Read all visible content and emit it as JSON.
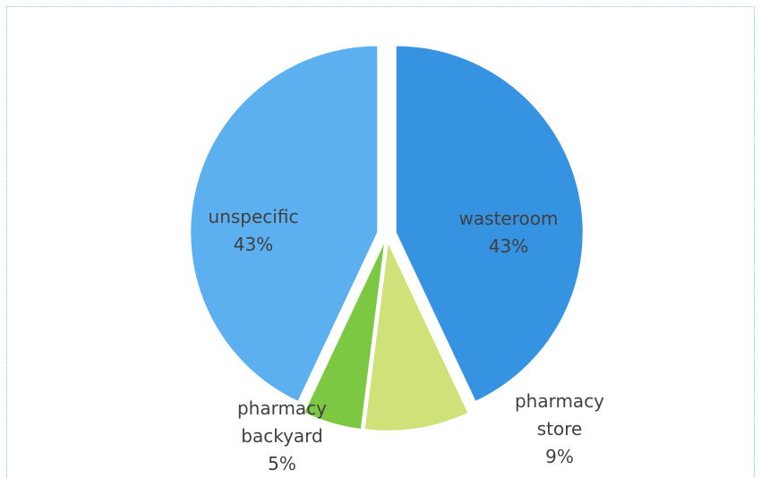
{
  "chart_data": {
    "type": "pie",
    "categories": [
      "wasteroom",
      "pharmacy store",
      "pharmacy backyard",
      "unspecific"
    ],
    "values": [
      43,
      9,
      5,
      43
    ],
    "value_labels": [
      "43%",
      "9%",
      "5%",
      "43%"
    ],
    "colors": [
      "#3593e2",
      "#cfe27a",
      "#7cc843",
      "#5cb0f0"
    ]
  }
}
